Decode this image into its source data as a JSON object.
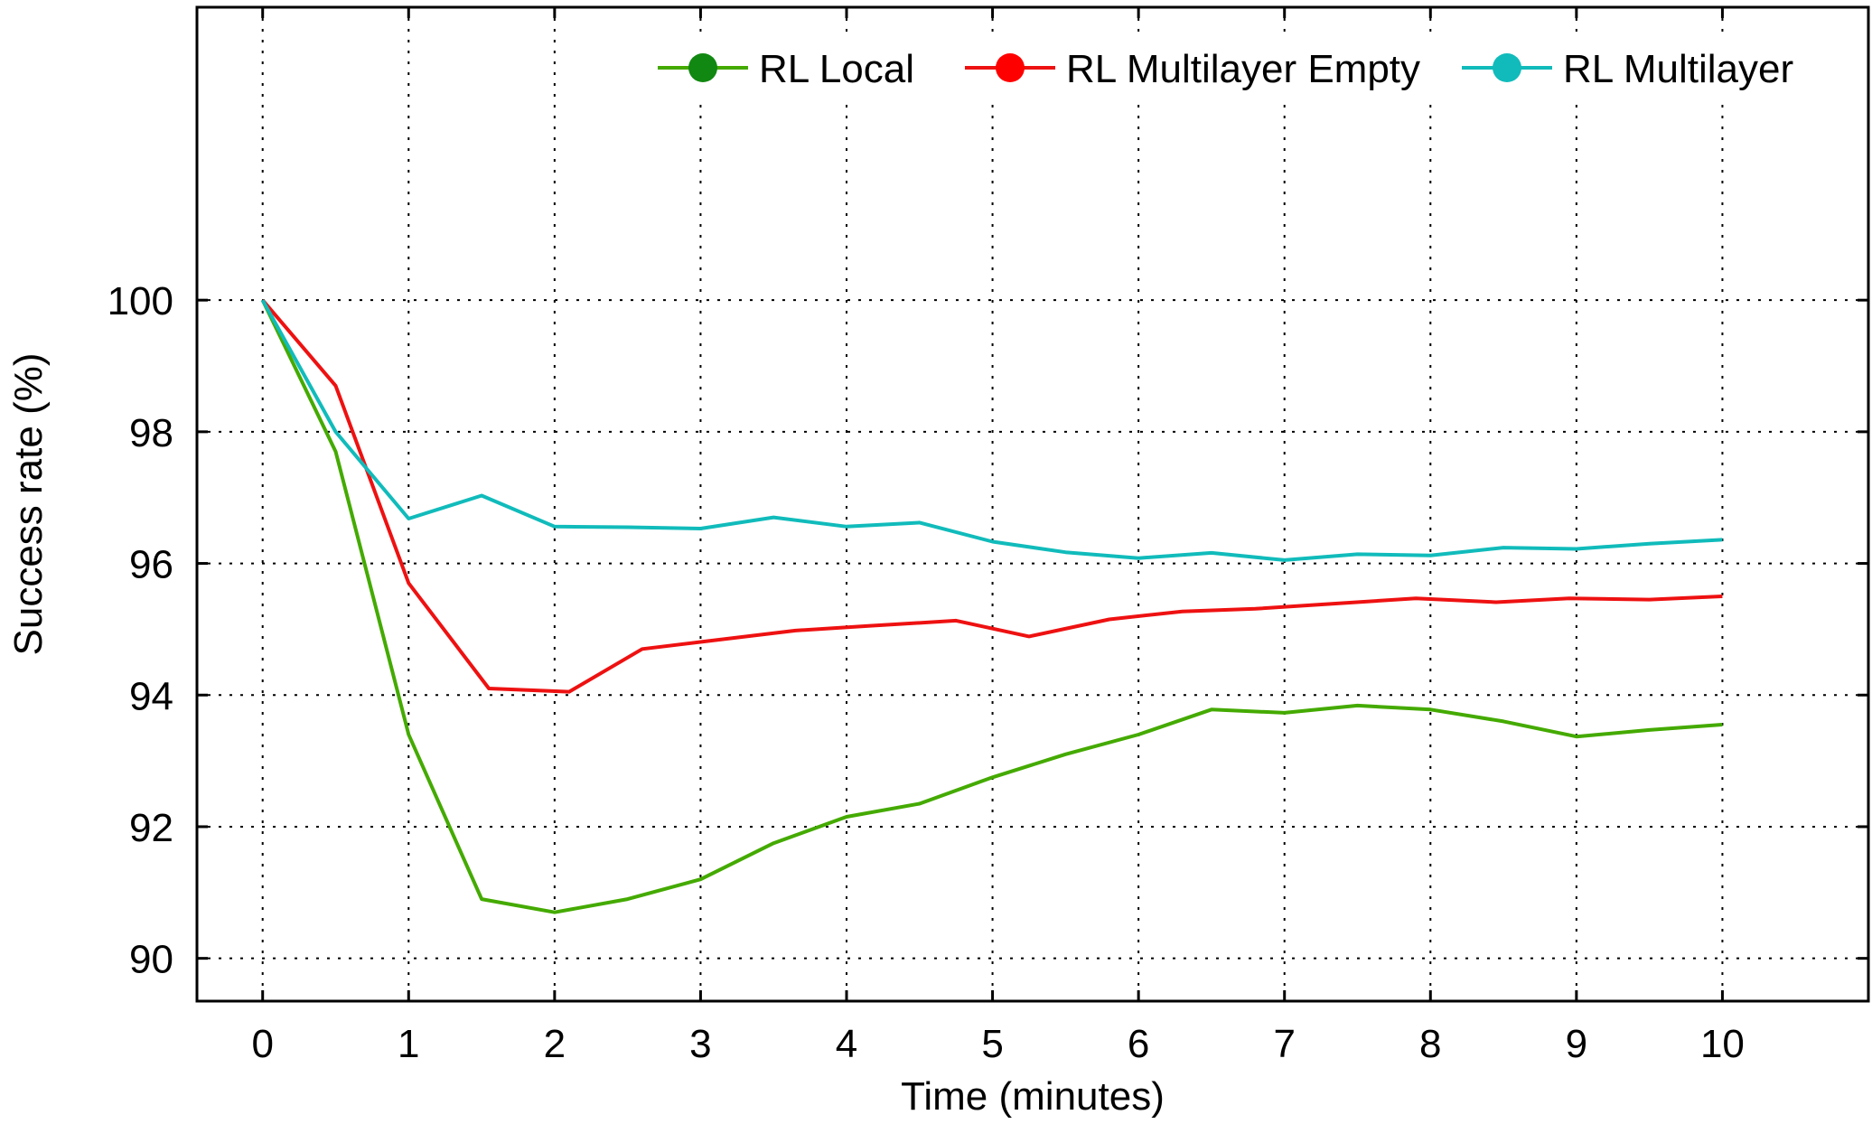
{
  "chart_data": {
    "type": "line",
    "title": "",
    "xlabel": "Time (minutes)",
    "ylabel": "Success rate (%)",
    "xlim": [
      -0.45,
      11.0
    ],
    "ylim": [
      89.35,
      104.45
    ],
    "xticks": [
      0,
      1,
      2,
      3,
      4,
      5,
      6,
      7,
      8,
      9,
      10
    ],
    "yticks": [
      90,
      92,
      94,
      96,
      98,
      100
    ],
    "grid": true,
    "legend_position": "top-right",
    "series": [
      {
        "name": "RL Local",
        "color": "#44aa00",
        "legend_marker_color": "#118811",
        "x": [
          0,
          0.5,
          1,
          1.5,
          2,
          2.5,
          3,
          3.5,
          4,
          4.5,
          5,
          5.5,
          6,
          6.5,
          7,
          7.5,
          8,
          8.5,
          9,
          9.5,
          10
        ],
        "y": [
          100,
          97.7,
          93.4,
          90.9,
          90.7,
          90.9,
          91.2,
          91.75,
          92.15,
          92.35,
          92.75,
          93.1,
          93.4,
          93.78,
          93.73,
          93.84,
          93.78,
          93.6,
          93.37,
          93.47,
          93.55
        ]
      },
      {
        "name": "RL Multilayer Empty",
        "color": "#ee1111",
        "legend_marker_color": "#ff0000",
        "x": [
          0,
          0.5,
          1,
          1.55,
          2.1,
          2.6,
          3.05,
          3.65,
          4.15,
          4.75,
          5.25,
          5.8,
          6.3,
          6.8,
          7.35,
          7.9,
          8.45,
          8.95,
          9.5,
          10
        ],
        "y": [
          100,
          98.7,
          95.7,
          94.1,
          94.05,
          94.7,
          94.82,
          94.98,
          95.05,
          95.13,
          94.89,
          95.15,
          95.27,
          95.31,
          95.39,
          95.47,
          95.41,
          95.47,
          95.45,
          95.5
        ]
      },
      {
        "name": "RL Multilayer",
        "color": "#11bbbb",
        "legend_marker_color": "#11bbbb",
        "x": [
          0,
          0.5,
          1,
          1.5,
          2,
          2.5,
          3,
          3.5,
          4,
          4.5,
          5,
          5.5,
          6,
          6.5,
          7,
          7.5,
          8,
          8.5,
          9,
          9.5,
          10
        ],
        "y": [
          100,
          98.0,
          96.68,
          97.03,
          96.56,
          96.55,
          96.53,
          96.7,
          96.56,
          96.62,
          96.33,
          96.17,
          96.08,
          96.16,
          96.05,
          96.14,
          96.12,
          96.24,
          96.22,
          96.3,
          96.36
        ]
      }
    ]
  }
}
